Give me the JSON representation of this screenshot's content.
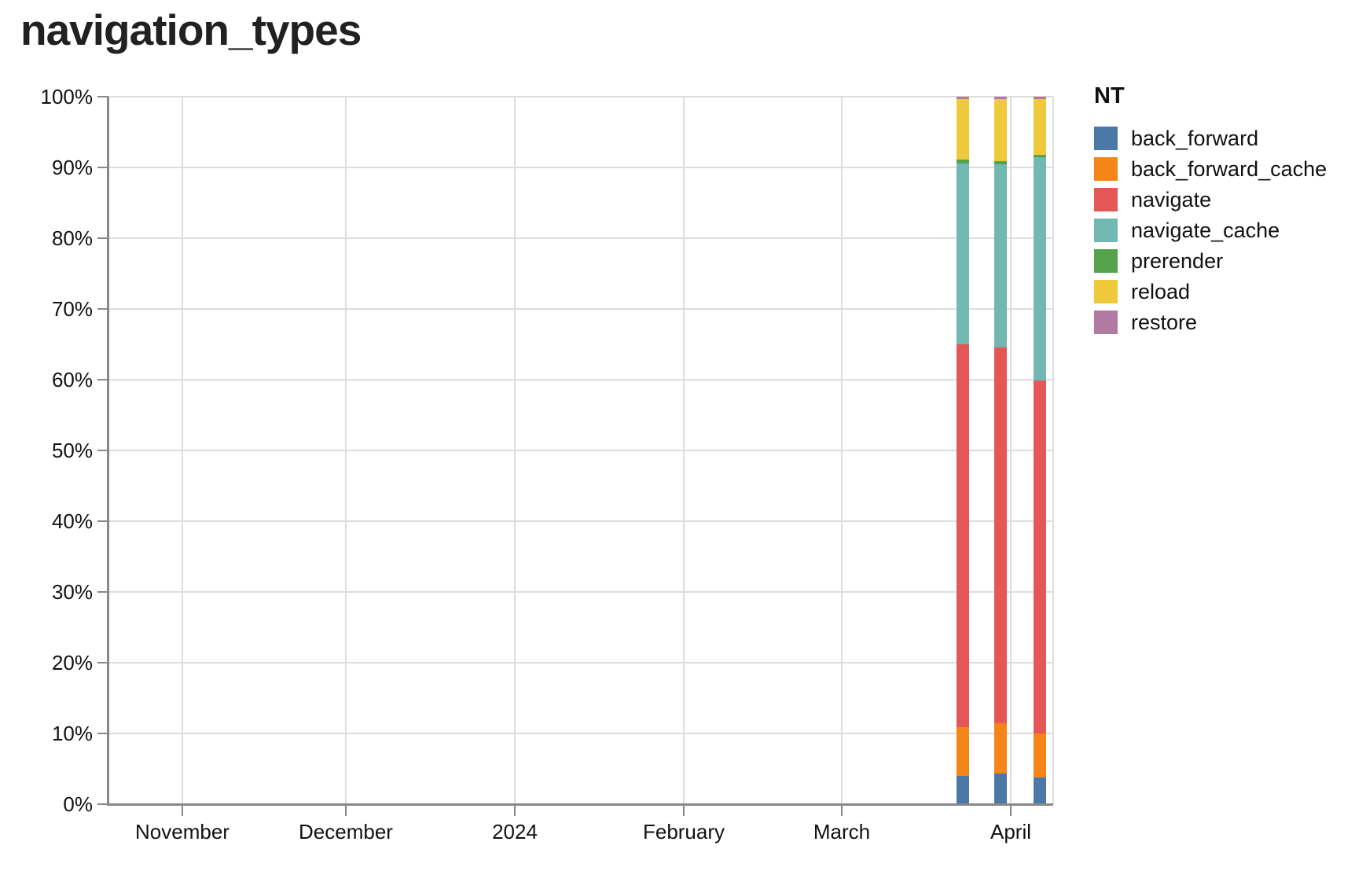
{
  "title": "navigation_types",
  "chart_data": {
    "type": "bar",
    "stacked": true,
    "normalized_percent": true,
    "title": "navigation_types",
    "legend_title": "NT",
    "legend_position": "right",
    "grid": true,
    "ylim": [
      0,
      100
    ],
    "y_tick_labels": [
      "0%",
      "10%",
      "20%",
      "30%",
      "40%",
      "50%",
      "60%",
      "70%",
      "80%",
      "90%",
      "100%"
    ],
    "x_tick_labels": [
      "November",
      "December",
      "2024",
      "February",
      "March",
      "April"
    ],
    "categories": [
      "2024-03-24 (est.)",
      "2024-03-31 (est.)",
      "2024-04-07 (est.)"
    ],
    "series": [
      {
        "name": "back_forward",
        "color": "#4c78a8",
        "values": [
          4.0,
          4.3,
          3.8
        ]
      },
      {
        "name": "back_forward_cache",
        "color": "#f58518",
        "values": [
          6.9,
          7.1,
          6.2
        ]
      },
      {
        "name": "navigate",
        "color": "#e45756",
        "values": [
          54.1,
          53.2,
          49.9
        ]
      },
      {
        "name": "navigate_cache",
        "color": "#72b7b2",
        "values": [
          25.6,
          25.9,
          31.5
        ]
      },
      {
        "name": "prerender",
        "color": "#54a24b",
        "values": [
          0.5,
          0.4,
          0.4
        ]
      },
      {
        "name": "reload",
        "color": "#eeca3b",
        "values": [
          8.6,
          8.8,
          7.9
        ]
      },
      {
        "name": "restore",
        "color": "#b279a2",
        "values": [
          0.3,
          0.3,
          0.3
        ]
      }
    ]
  }
}
